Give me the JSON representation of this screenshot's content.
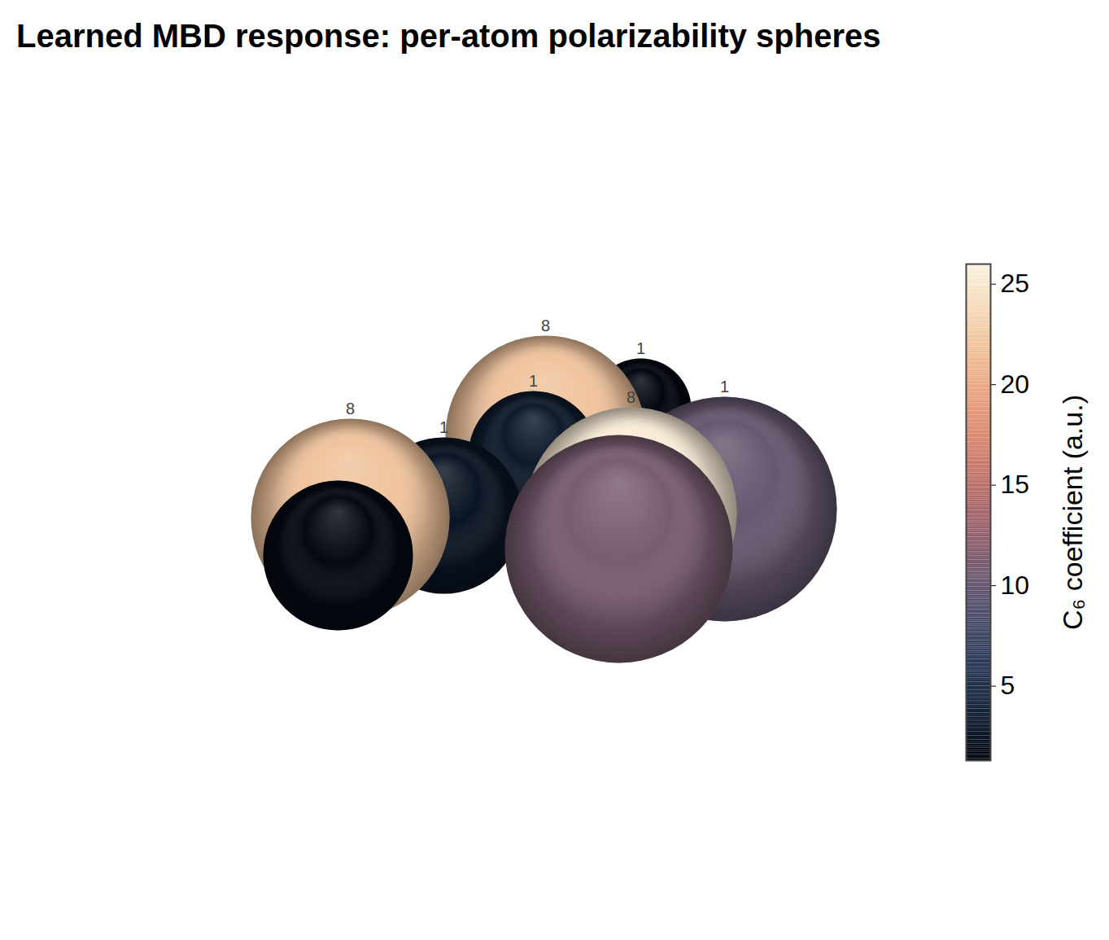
{
  "chart_data": {
    "type": "scatter",
    "title": "Learned MBD response: per-atom polarizability spheres",
    "tick_labels": false,
    "xlim": [
      0,
      1150
    ],
    "ylim": [
      1155,
      0
    ],
    "points": [
      {
        "Z": 1,
        "x": 787,
        "y": 502,
        "size": 62,
        "c6": 1.3
      },
      {
        "Z": 8,
        "x": 670,
        "y": 535,
        "size": 123,
        "c6": 22
      },
      {
        "Z": 1,
        "x": 655,
        "y": 560,
        "size": 80,
        "c6": 3
      },
      {
        "Z": 1,
        "x": 545,
        "y": 633,
        "size": 96,
        "c6": 2.5
      },
      {
        "Z": 8,
        "x": 430,
        "y": 636,
        "size": 122,
        "c6": 22
      },
      {
        "Z": null,
        "x": 415,
        "y": 682,
        "size": 92,
        "c6": 1.5
      },
      {
        "Z": 1,
        "x": 890,
        "y": 625,
        "size": 138,
        "c6": 10
      },
      {
        "Z": 8,
        "x": 775,
        "y": 630,
        "size": 130,
        "c6": 25.5
      },
      {
        "Z": null,
        "x": 760,
        "y": 674,
        "size": 140,
        "c6": 11
      }
    ],
    "colorbar": {
      "label": "C₆ coefficient (a.u.)",
      "range": [
        1.3,
        26
      ],
      "ticks": [
        5,
        10,
        15,
        20,
        25
      ]
    }
  }
}
